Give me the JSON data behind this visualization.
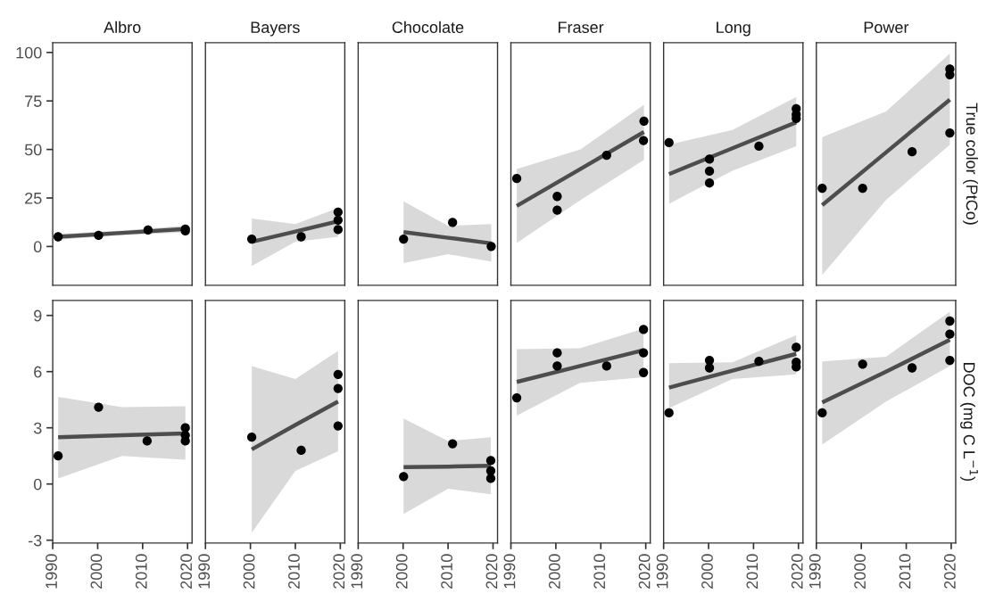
{
  "chart_data": [
    {
      "type": "scatter",
      "title": "Albro",
      "xlim": [
        1990,
        2021
      ],
      "ylim": [
        -20,
        105
      ],
      "yticks": [
        0,
        25,
        50,
        75,
        100
      ],
      "tick_labels": "y",
      "series": [
        {
          "marker": "circle",
          "color": "#000000",
          "x": [
            1991.2,
            2000.2,
            2011.2,
            2019.5,
            2019.5
          ],
          "values": [
            5,
            5.7,
            8.5,
            9,
            8
          ]
        },
        {
          "type": "line",
          "color": "#4d4d4d",
          "x": [
            1991.2,
            2005.4,
            2019.5
          ],
          "values": [
            5,
            7,
            9
          ],
          "lower": [
            3.5,
            5.8,
            7.3
          ],
          "upper": [
            6.5,
            8.2,
            10.7
          ]
        }
      ]
    },
    {
      "type": "scatter",
      "title": "Bayers",
      "xlim": [
        1990,
        2021
      ],
      "ylim": [
        -20,
        105
      ],
      "tick_labels": false,
      "series": [
        {
          "marker": "circle",
          "color": "#000000",
          "x": [
            2000.3,
            2011.3,
            2019.5,
            2019.5,
            2019.5
          ],
          "values": [
            3.8,
            5,
            17.7,
            13.6,
            8.7
          ]
        },
        {
          "type": "line",
          "color": "#4d4d4d",
          "x": [
            2000.3,
            2010,
            2019.5
          ],
          "values": [
            2.4,
            7.7,
            13
          ],
          "lower": [
            -10,
            2.5,
            5
          ],
          "upper": [
            14.4,
            11.5,
            19.8
          ]
        }
      ]
    },
    {
      "type": "scatter",
      "title": "Chocolate",
      "xlim": [
        1990,
        2021
      ],
      "ylim": [
        -20,
        105
      ],
      "tick_labels": false,
      "series": [
        {
          "marker": "circle",
          "color": "#000000",
          "x": [
            2000.1,
            2011,
            2019.6
          ],
          "values": [
            3.8,
            12.4,
            0
          ]
        },
        {
          "type": "line",
          "color": "#4d4d4d",
          "x": [
            2000.1,
            2010,
            2019.6
          ],
          "values": [
            7.4,
            4.5,
            1.6
          ],
          "lower": [
            -8.6,
            -4,
            -7.8
          ],
          "upper": [
            23.3,
            10.6,
            11.5
          ]
        }
      ]
    },
    {
      "type": "scatter",
      "title": "Fraser",
      "xlim": [
        1990,
        2021
      ],
      "ylim": [
        -20,
        105
      ],
      "tick_labels": false,
      "series": [
        {
          "marker": "circle",
          "color": "#000000",
          "x": [
            1991.3,
            2000.3,
            2000.3,
            2011.3,
            2019.6,
            2019.5
          ],
          "values": [
            35,
            25.8,
            18.7,
            47,
            64.6,
            54.6
          ]
        },
        {
          "type": "line",
          "color": "#4d4d4d",
          "x": [
            1991.3,
            2005.5,
            2019.6
          ],
          "values": [
            20.9,
            40,
            59
          ],
          "lower": [
            1.8,
            24,
            44.6
          ],
          "upper": [
            39.9,
            50,
            73
          ]
        }
      ]
    },
    {
      "type": "scatter",
      "title": "Long",
      "xlim": [
        1990,
        2021
      ],
      "ylim": [
        -20,
        105
      ],
      "tick_labels": false,
      "series": [
        {
          "marker": "circle",
          "color": "#000000",
          "x": [
            1991.2,
            2000.2,
            2000.2,
            2000.2,
            2011.2,
            2019.5,
            2019.5,
            2019.5
          ],
          "values": [
            53.5,
            45,
            38.8,
            32.7,
            51.7,
            71,
            68,
            66
          ]
        },
        {
          "type": "line",
          "color": "#4d4d4d",
          "x": [
            1991.2,
            2005.3,
            2019.5
          ],
          "values": [
            37.3,
            50.6,
            64
          ],
          "lower": [
            22,
            39,
            51.7
          ],
          "upper": [
            52.5,
            60,
            77
          ]
        }
      ]
    },
    {
      "type": "scatter",
      "title": "Power",
      "ylabel": "True color (PtCo)",
      "xlim": [
        1990,
        2021
      ],
      "ylim": [
        -20,
        105
      ],
      "tick_labels": false,
      "series": [
        {
          "marker": "circle",
          "color": "#000000",
          "x": [
            1991.3,
            2000.3,
            2011.3,
            2019.7,
            2019.7,
            2019.7
          ],
          "values": [
            30,
            30,
            48.8,
            91.4,
            88.5,
            58.5
          ]
        },
        {
          "type": "line",
          "color": "#4d4d4d",
          "x": [
            1991.3,
            2005.5,
            2019.7
          ],
          "values": [
            21.3,
            48.5,
            75.7
          ],
          "lower": [
            -14.6,
            24,
            52.5
          ],
          "upper": [
            56.4,
            69.6,
            99.4
          ]
        }
      ]
    },
    {
      "type": "scatter",
      "xlim": [
        1990,
        2021
      ],
      "xticks": [
        1990,
        2000,
        2010,
        2020
      ],
      "ylim": [
        -3.15,
        9.8
      ],
      "yticks": [
        {
          "value": -3,
          "label": "-3"
        },
        0,
        3,
        6,
        9
      ],
      "series": [
        {
          "marker": "circle",
          "color": "#000000",
          "x": [
            1991.2,
            2000.2,
            2011,
            2019.5,
            2019.5,
            2019.5
          ],
          "values": [
            1.5,
            4.1,
            2.3,
            3.0,
            2.6,
            2.3
          ]
        },
        {
          "type": "line",
          "color": "#4d4d4d",
          "x": [
            1991.2,
            2005.4,
            2019.5
          ],
          "values": [
            2.5,
            2.6,
            2.7
          ],
          "lower": [
            0.3,
            1.5,
            1.3
          ],
          "upper": [
            4.65,
            4.1,
            4.15
          ]
        }
      ]
    },
    {
      "type": "scatter",
      "xlim": [
        1990,
        2021
      ],
      "xticks": [
        1990,
        2000,
        2010,
        2020
      ],
      "ylim": [
        -3.15,
        9.8
      ],
      "tick_labels": "x",
      "series": [
        {
          "marker": "circle",
          "color": "#000000",
          "x": [
            2000.3,
            2011.3,
            2019.5,
            2019.5,
            2019.5
          ],
          "values": [
            2.5,
            1.8,
            5.85,
            5.1,
            3.1
          ]
        },
        {
          "type": "line",
          "color": "#4d4d4d",
          "x": [
            2000.3,
            2010,
            2019.5
          ],
          "values": [
            1.85,
            3.15,
            4.4
          ],
          "lower": [
            -2.6,
            0.7,
            1.75
          ],
          "upper": [
            6.3,
            5.6,
            7.1
          ]
        }
      ]
    },
    {
      "type": "scatter",
      "xlim": [
        1990,
        2021
      ],
      "xticks": [
        1990,
        2000,
        2010,
        2020
      ],
      "ylim": [
        -3.15,
        9.8
      ],
      "tick_labels": "x",
      "series": [
        {
          "marker": "circle",
          "color": "#000000",
          "x": [
            2000.1,
            2011,
            2019.5,
            2019.5,
            2019.5
          ],
          "values": [
            0.4,
            2.15,
            1.25,
            0.7,
            0.3
          ]
        },
        {
          "type": "line",
          "color": "#4d4d4d",
          "x": [
            2000.1,
            2010,
            2019.5
          ],
          "values": [
            0.9,
            0.93,
            0.97
          ],
          "lower": [
            -1.6,
            -0.25,
            -0.55
          ],
          "upper": [
            3.5,
            2.3,
            2.5
          ]
        }
      ]
    },
    {
      "type": "scatter",
      "xlim": [
        1990,
        2021
      ],
      "xticks": [
        1990,
        2000,
        2010,
        2020
      ],
      "ylim": [
        -3.15,
        9.8
      ],
      "tick_labels": "x",
      "series": [
        {
          "marker": "circle",
          "color": "#000000",
          "x": [
            1991.3,
            2000.3,
            2000.3,
            2011.3,
            2019.5,
            2019.5,
            2019.5
          ],
          "values": [
            4.6,
            7.0,
            6.3,
            6.3,
            8.25,
            7.0,
            5.95
          ]
        },
        {
          "type": "line",
          "color": "#4d4d4d",
          "x": [
            1991.3,
            2005.4,
            2019.5
          ],
          "values": [
            5.45,
            6.3,
            7.15
          ],
          "lower": [
            3.65,
            5.4,
            5.7
          ],
          "upper": [
            7.2,
            7.25,
            8.3
          ]
        }
      ]
    },
    {
      "type": "scatter",
      "xlim": [
        1990,
        2021
      ],
      "xticks": [
        1990,
        2000,
        2010,
        2020
      ],
      "ylim": [
        -3.15,
        9.8
      ],
      "tick_labels": "x",
      "series": [
        {
          "marker": "circle",
          "color": "#000000",
          "x": [
            1991.2,
            2000.2,
            2000.2,
            2011.2,
            2019.5,
            2019.5,
            2019.5
          ],
          "values": [
            3.8,
            6.6,
            6.2,
            6.55,
            7.3,
            6.5,
            6.25
          ]
        },
        {
          "type": "line",
          "color": "#4d4d4d",
          "x": [
            1991.2,
            2005.3,
            2019.5
          ],
          "values": [
            5.15,
            6.05,
            6.95
          ],
          "lower": [
            4.05,
            5.6,
            5.85
          ],
          "upper": [
            6.45,
            6.5,
            7.95
          ]
        }
      ]
    },
    {
      "type": "scatter",
      "ylabel": "DOC (mg C L$^{−1}$)",
      "xlim": [
        1990,
        2021
      ],
      "xticks": [
        1990,
        2000,
        2010,
        2020
      ],
      "ylim": [
        -3.15,
        9.8
      ],
      "tick_labels": "x",
      "series": [
        {
          "marker": "circle",
          "color": "#000000",
          "x": [
            1991.3,
            2000.3,
            2011.3,
            2019.7,
            2019.7,
            2019.7
          ],
          "values": [
            3.8,
            6.4,
            6.2,
            8.7,
            8.0,
            6.6
          ]
        },
        {
          "type": "line",
          "color": "#4d4d4d",
          "x": [
            1991.3,
            2005.5,
            2019.7
          ],
          "values": [
            4.35,
            6.0,
            7.7
          ],
          "lower": [
            2.1,
            4.4,
            6.3
          ],
          "upper": [
            6.55,
            6.8,
            9.2
          ]
        }
      ]
    }
  ]
}
